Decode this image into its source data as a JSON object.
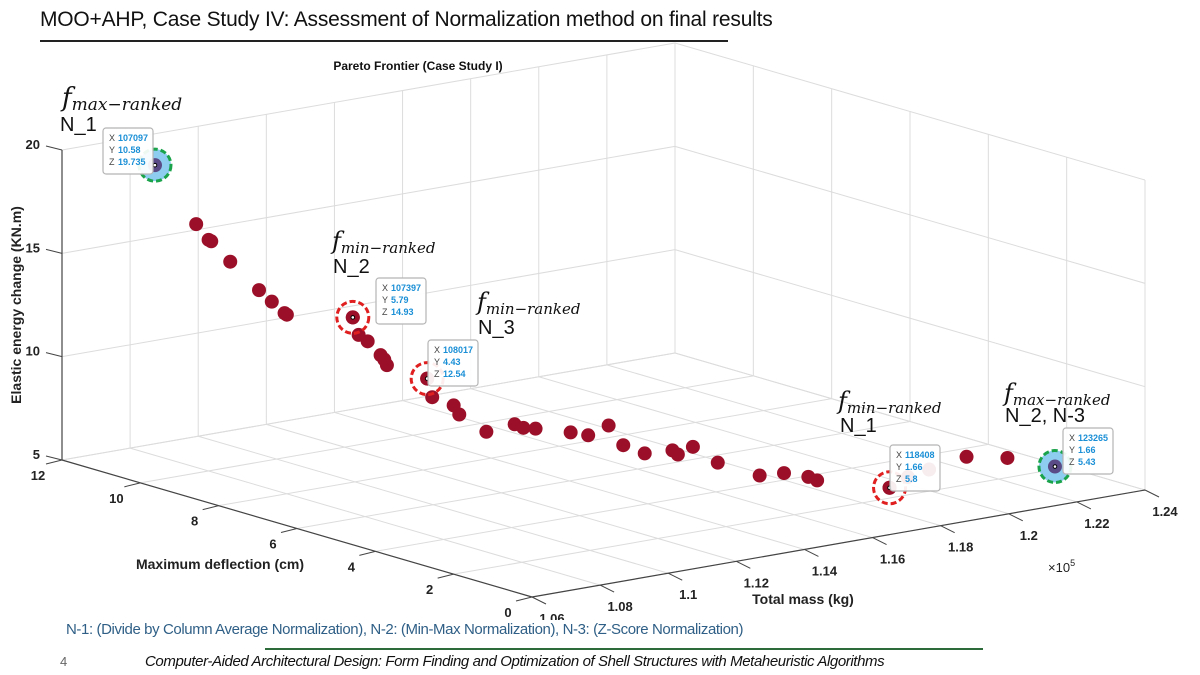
{
  "slide": {
    "title": "MOO+AHP, Case Study IV: Assessment of Normalization method on final results",
    "footnote": "N-1: (Divide by Column Average Normalization), N-2: (Min-Max Normalization), N-3: (Z-Score Normalization)",
    "page_number": "4",
    "footer": "Computer-Aided Architectural Design:  Form Finding and Optimization of Shell Structures with Metaheuristic Algorithms"
  },
  "chart_data": {
    "type": "scatter3d",
    "title": "Pareto Frontier (Case Study I)",
    "xlabel": "Total mass (kg)",
    "ylabel": "Maximum deflection (cm)",
    "zlabel": "Elastic energy change (KN.m)",
    "x_multiplier_label": "×10",
    "x_multiplier_exp": "5",
    "xlim": [
      106000,
      124000
    ],
    "ylim": [
      0,
      12
    ],
    "zlim": [
      5,
      20
    ],
    "x_ticks": [
      "1.06",
      "1.08",
      "1.1",
      "1.12",
      "1.14",
      "1.16",
      "1.18",
      "1.2",
      "1.22",
      "1.24"
    ],
    "y_ticks": [
      "0",
      "2",
      "4",
      "6",
      "8",
      "10",
      "12"
    ],
    "z_ticks": [
      "5",
      "10",
      "15",
      "20"
    ],
    "grid": true,
    "marker_color": "#9b1028",
    "highlight_fill": "#8ecdf0",
    "max_ring_color": "#1aa34a",
    "min_ring_color": "#e02020",
    "points": [
      {
        "x": 107097,
        "y": 10.58,
        "z": 19.735
      },
      {
        "x": 107180,
        "y": 9.6,
        "z": 17.4
      },
      {
        "x": 107200,
        "y": 9.3,
        "z": 16.8
      },
      {
        "x": 107220,
        "y": 9.25,
        "z": 16.75
      },
      {
        "x": 107260,
        "y": 8.8,
        "z": 16.0
      },
      {
        "x": 107300,
        "y": 8.1,
        "z": 15.0
      },
      {
        "x": 107330,
        "y": 7.8,
        "z": 14.6
      },
      {
        "x": 107360,
        "y": 7.5,
        "z": 14.2
      },
      {
        "x": 107370,
        "y": 7.45,
        "z": 14.15
      },
      {
        "x": 107397,
        "y": 5.79,
        "z": 14.93
      },
      {
        "x": 107350,
        "y": 5.6,
        "z": 14.2
      },
      {
        "x": 107500,
        "y": 5.5,
        "z": 13.9
      },
      {
        "x": 107650,
        "y": 5.3,
        "z": 13.3
      },
      {
        "x": 107700,
        "y": 5.25,
        "z": 13.1
      },
      {
        "x": 107720,
        "y": 5.2,
        "z": 12.85
      },
      {
        "x": 108017,
        "y": 4.43,
        "z": 12.54
      },
      {
        "x": 107900,
        "y": 4.2,
        "z": 11.8
      },
      {
        "x": 108300,
        "y": 4.0,
        "z": 11.4
      },
      {
        "x": 108350,
        "y": 3.9,
        "z": 11.0
      },
      {
        "x": 108800,
        "y": 3.6,
        "z": 10.2
      },
      {
        "x": 109400,
        "y": 3.4,
        "z": 10.5
      },
      {
        "x": 109600,
        "y": 3.35,
        "z": 10.3
      },
      {
        "x": 109900,
        "y": 3.3,
        "z": 10.2
      },
      {
        "x": 110700,
        "y": 3.1,
        "z": 9.9
      },
      {
        "x": 111100,
        "y": 3.0,
        "z": 9.7
      },
      {
        "x": 111700,
        "y": 3.0,
        "z": 10.0
      },
      {
        "x": 111900,
        "y": 2.8,
        "z": 9.1
      },
      {
        "x": 112300,
        "y": 2.6,
        "z": 8.7
      },
      {
        "x": 113000,
        "y": 2.5,
        "z": 8.7
      },
      {
        "x": 113100,
        "y": 2.45,
        "z": 8.5
      },
      {
        "x": 113600,
        "y": 2.5,
        "z": 8.7
      },
      {
        "x": 114100,
        "y": 2.3,
        "z": 7.9
      },
      {
        "x": 115100,
        "y": 2.1,
        "z": 7.1
      },
      {
        "x": 115700,
        "y": 2.0,
        "z": 7.1
      },
      {
        "x": 116300,
        "y": 1.9,
        "z": 6.8
      },
      {
        "x": 116500,
        "y": 1.85,
        "z": 6.6
      },
      {
        "x": 118408,
        "y": 1.66,
        "z": 5.8
      },
      {
        "x": 118900,
        "y": 1.62,
        "z": 6.2
      },
      {
        "x": 119500,
        "y": 1.6,
        "z": 6.4
      },
      {
        "x": 120600,
        "y": 1.6,
        "z": 6.7
      },
      {
        "x": 121800,
        "y": 1.6,
        "z": 6.3
      },
      {
        "x": 123265,
        "y": 1.66,
        "z": 5.43
      }
    ],
    "annotations": [
      {
        "f_base": "f",
        "f_sub": "max−ranked",
        "n_label": "N_1",
        "tip": {
          "x": "107097",
          "y": "10.58",
          "z": "19.735"
        },
        "kind": "max"
      },
      {
        "f_base": "f",
        "f_sub": "min−ranked",
        "n_label": "N_2",
        "tip": {
          "x": "107397",
          "y": "5.79",
          "z": "14.93"
        },
        "kind": "min"
      },
      {
        "f_base": "f",
        "f_sub": "min−ranked",
        "n_label": "N_3",
        "tip": {
          "x": "108017",
          "y": "4.43",
          "z": "12.54"
        },
        "kind": "min"
      },
      {
        "f_base": "f",
        "f_sub": "min−ranked",
        "n_label": "N_1",
        "tip": {
          "x": "118408",
          "y": "1.66",
          "z": "5.8"
        },
        "kind": "min"
      },
      {
        "f_base": "f",
        "f_sub": "max−ranked",
        "n_label": "N_2, N-3",
        "tip": {
          "x": "123265",
          "y": "1.66",
          "z": "5.43"
        },
        "kind": "max"
      }
    ],
    "tip_labels": {
      "x": "X",
      "y": "Y",
      "z": "Z"
    }
  }
}
